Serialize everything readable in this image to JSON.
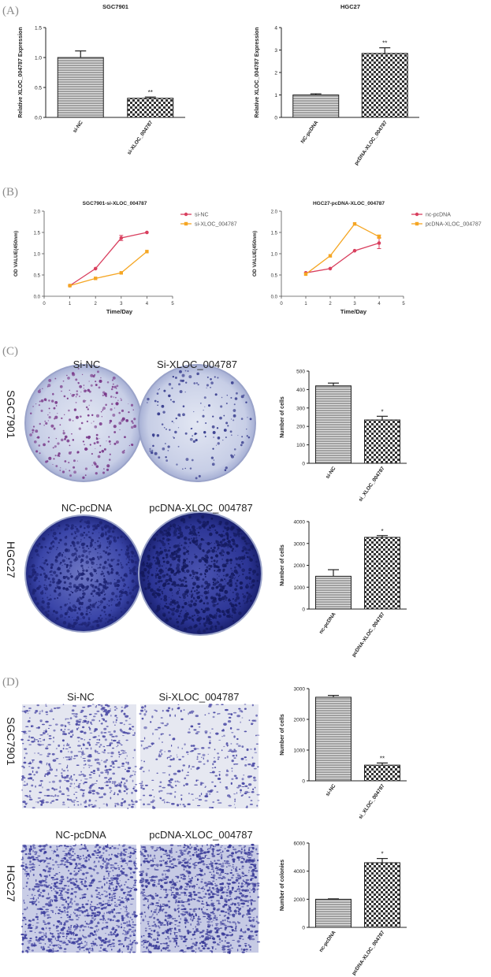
{
  "panels": {
    "A": "(A)",
    "B": "(B)",
    "C": "(C)",
    "D": "(D)"
  },
  "colors": {
    "pink": "#d9405f",
    "orange": "#f5a623",
    "dish_light": "#c8cfe6",
    "dish_dark": "#2e3a9a",
    "well_light": "#d9def0",
    "well_dark": "#3b3f9f"
  },
  "photo_labels": {
    "c_top_left": "Si-NC",
    "c_top_right": "Si-XLOC_004787",
    "c_bottom_left": "NC-pcDNA",
    "c_bottom_right": "pcDNA-XLOC_004787",
    "c_side_top": "SGC7901",
    "c_side_bottom": "HGC27",
    "d_top_left": "Si-NC",
    "d_top_right": "Si-XLOC_004787",
    "d_bottom_left": "NC-pcDNA",
    "d_bottom_right": "pcDNA-XLOC_004787",
    "d_side_top": "SGC7901",
    "d_side_bottom": "HGC27"
  },
  "chart_data": [
    {
      "id": "A1",
      "type": "bar",
      "title": "SGC7901",
      "ylabel": "Relative XLOC_004787 Expression",
      "ylim": [
        0,
        1.5
      ],
      "yticks": [
        0,
        0.5,
        1.0,
        1.5
      ],
      "yticklabels": [
        "0.0",
        "0.5",
        "1.0",
        "1.5"
      ],
      "categories": [
        "si-NC",
        "si-XLOC_004787"
      ],
      "values": [
        1.0,
        0.32
      ],
      "errors": [
        0.11,
        0.02
      ],
      "annotations": [
        "",
        "**"
      ]
    },
    {
      "id": "A2",
      "type": "bar",
      "title": "HGC27",
      "ylabel": "Relative XLOC_004787 Expression",
      "ylim": [
        0,
        4
      ],
      "yticks": [
        0,
        1,
        2,
        3,
        4
      ],
      "yticklabels": [
        "0",
        "1",
        "2",
        "3",
        "4"
      ],
      "categories": [
        "NC-pcDNA",
        "pcDNA-XLOC_004787"
      ],
      "values": [
        1.0,
        2.85
      ],
      "errors": [
        0.05,
        0.25
      ],
      "annotations": [
        "",
        "**"
      ]
    },
    {
      "id": "B1",
      "type": "line",
      "title": "SGC7901-si-XLOC_004787",
      "xlabel": "Time/Day",
      "ylabel": "OD VALUE(450nm)",
      "xlim": [
        0,
        5
      ],
      "ylim": [
        0,
        2.0
      ],
      "xticks": [
        0,
        1,
        2,
        3,
        4,
        5
      ],
      "xticklabels": [
        "0",
        "1",
        "2",
        "3",
        "4",
        "5"
      ],
      "yticks": [
        0,
        0.5,
        1.0,
        1.5,
        2.0
      ],
      "yticklabels": [
        "0.0",
        "0.5",
        "1.0",
        "1.5",
        "2.0"
      ],
      "x": [
        1,
        2,
        3,
        4
      ],
      "series": [
        {
          "name": "si-NC",
          "color": "#d9405f",
          "values": [
            0.25,
            0.65,
            1.37,
            1.5
          ],
          "errors": [
            0.02,
            0.02,
            0.06,
            0.02
          ]
        },
        {
          "name": "si-XLOC_004787",
          "color": "#f5a623",
          "values": [
            0.25,
            0.42,
            0.55,
            1.05
          ],
          "errors": [
            0.02,
            0.02,
            0.02,
            0.02
          ]
        }
      ]
    },
    {
      "id": "B2",
      "type": "line",
      "title": "HGC27-pcDNA-XLOC_004787",
      "xlabel": "Time/Day",
      "ylabel": "OD VALUE(450nm)",
      "xlim": [
        0,
        5
      ],
      "ylim": [
        0,
        2.0
      ],
      "xticks": [
        0,
        1,
        2,
        3,
        4,
        5
      ],
      "xticklabels": [
        "0",
        "1",
        "2",
        "3",
        "4",
        "5"
      ],
      "yticks": [
        0,
        0.5,
        1.0,
        1.5,
        2.0
      ],
      "yticklabels": [
        "0.0",
        "0.5",
        "1.0",
        "1.5",
        "2.0"
      ],
      "x": [
        1,
        2,
        3,
        4
      ],
      "series": [
        {
          "name": "nc-pcDNA",
          "color": "#d9405f",
          "values": [
            0.55,
            0.65,
            1.07,
            1.25
          ],
          "errors": [
            0.03,
            0.02,
            0.02,
            0.13
          ]
        },
        {
          "name": "pcDNA-XLOC_004787",
          "color": "#f5a623",
          "values": [
            0.52,
            0.95,
            1.7,
            1.4
          ],
          "errors": [
            0.02,
            0.02,
            0.02,
            0.04
          ]
        }
      ]
    },
    {
      "id": "C1",
      "type": "bar",
      "title": "",
      "ylabel": "Number of cells",
      "ylim": [
        0,
        500
      ],
      "yticks": [
        0,
        100,
        200,
        300,
        400,
        500
      ],
      "yticklabels": [
        "0",
        "100",
        "200",
        "300",
        "400",
        "500"
      ],
      "categories": [
        "si-NC",
        "si_XLOC_004787"
      ],
      "values": [
        420,
        235
      ],
      "errors": [
        15,
        20
      ],
      "annotations": [
        "",
        "*"
      ]
    },
    {
      "id": "C2",
      "type": "bar",
      "title": "",
      "ylabel": "Number of cells",
      "ylim": [
        0,
        4000
      ],
      "yticks": [
        0,
        1000,
        2000,
        3000,
        4000
      ],
      "yticklabels": [
        "0",
        "1000",
        "2000",
        "3000",
        "4000"
      ],
      "categories": [
        "nc-pcDNA",
        "pcDNA-XLOC_004787"
      ],
      "values": [
        1500,
        3280
      ],
      "errors": [
        300,
        80
      ],
      "annotations": [
        "",
        "*"
      ]
    },
    {
      "id": "D1",
      "type": "bar",
      "title": "",
      "ylabel": "Number of cells",
      "ylim": [
        0,
        3000
      ],
      "yticks": [
        0,
        1000,
        2000,
        3000
      ],
      "yticklabels": [
        "0",
        "1000",
        "2000",
        "3000"
      ],
      "categories": [
        "si-NC",
        "si_XLOC_004787"
      ],
      "values": [
        2720,
        510
      ],
      "errors": [
        60,
        70
      ],
      "annotations": [
        "",
        "**"
      ]
    },
    {
      "id": "D2",
      "type": "bar",
      "title": "",
      "ylabel": "Number of colonies",
      "ylim": [
        0,
        6000
      ],
      "yticks": [
        0,
        2000,
        4000,
        6000
      ],
      "yticklabels": [
        "0",
        "2000",
        "4000",
        "6000"
      ],
      "categories": [
        "nc-pcDNA",
        "pcDNA-XLOC_004787"
      ],
      "values": [
        2000,
        4600
      ],
      "errors": [
        30,
        300
      ],
      "annotations": [
        "",
        "*"
      ]
    }
  ]
}
